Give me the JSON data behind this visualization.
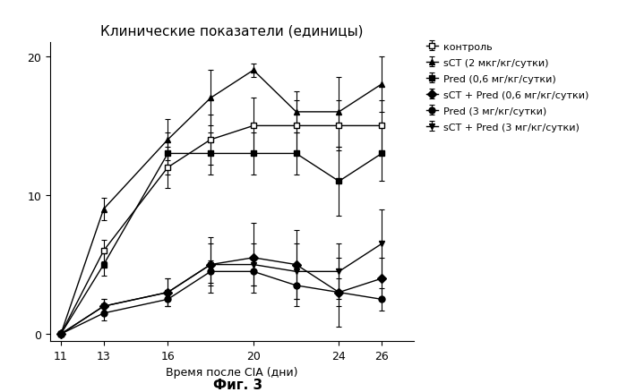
{
  "title": "Клинические показатели (единицы)",
  "xlabel": "Время после CIA (дни)",
  "figcaption": "Фиг. 3",
  "x": [
    11,
    13,
    16,
    18,
    20,
    22,
    24,
    26
  ],
  "series": [
    {
      "label": "контроль",
      "y": [
        0,
        6,
        12,
        14,
        15,
        15,
        15,
        15
      ],
      "yerr": [
        0,
        0.8,
        1.5,
        1.8,
        2.0,
        1.8,
        1.8,
        1.8
      ],
      "marker": "s",
      "color": "black",
      "markerfacecolor": "white"
    },
    {
      "label": "sCT (2 мкг/кг/сутки)",
      "y": [
        0,
        9,
        14,
        17,
        19,
        16,
        16,
        18
      ],
      "yerr": [
        0,
        0.8,
        1.5,
        2.0,
        0.5,
        1.5,
        2.5,
        2.0
      ],
      "marker": "^",
      "color": "black",
      "markerfacecolor": "black"
    },
    {
      "label": "Pred (0,6 мг/кг/сутки)",
      "y": [
        0,
        5,
        13,
        13,
        13,
        13,
        11,
        13
      ],
      "yerr": [
        0,
        0.8,
        1.5,
        1.5,
        1.5,
        1.5,
        2.5,
        2.0
      ],
      "marker": "s",
      "color": "black",
      "markerfacecolor": "black"
    },
    {
      "label": "sCT + Pred (0,6 мг/кг/сутки)",
      "y": [
        0,
        2,
        3,
        5,
        5.5,
        5,
        3,
        4
      ],
      "yerr": [
        0,
        0.5,
        1.0,
        2.0,
        2.5,
        2.5,
        2.5,
        1.5
      ],
      "marker": "D",
      "color": "black",
      "markerfacecolor": "black"
    },
    {
      "label": "Pred (3 мг/кг/сутки)",
      "y": [
        0,
        1.5,
        2.5,
        4.5,
        4.5,
        3.5,
        3,
        2.5
      ],
      "yerr": [
        0,
        0.5,
        0.5,
        0.8,
        1.0,
        1.5,
        1.0,
        0.8
      ],
      "marker": "o",
      "color": "black",
      "markerfacecolor": "black"
    },
    {
      "label": "sCT + Pred (3 мг/кг/сутки)",
      "y": [
        0,
        2,
        3,
        5,
        5,
        4.5,
        4.5,
        6.5
      ],
      "yerr": [
        0,
        0.5,
        1.0,
        1.5,
        1.5,
        2.0,
        2.0,
        2.5
      ],
      "marker": "v",
      "color": "black",
      "markerfacecolor": "black"
    }
  ],
  "xticks": [
    11,
    13,
    16,
    20,
    24,
    26
  ],
  "yticks": [
    0,
    10,
    20
  ],
  "ylim": [
    -0.5,
    21
  ],
  "xlim": [
    10.5,
    27.5
  ]
}
